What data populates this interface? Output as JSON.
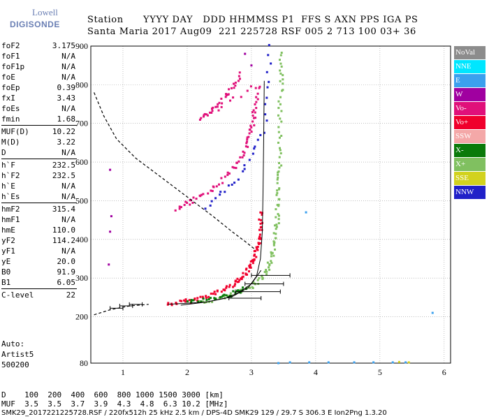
{
  "logo": {
    "line1": "Lowell",
    "line2": "DIGISONDE"
  },
  "header": {
    "row1": "Station      YYYY DAY   DDD HHMMSS P1  FFS S AXN PPS IGA PS",
    "row2": "Santa Maria 2017 Aug09  221 225728 RSF 005 2 713 100 03+ 36"
  },
  "params": [
    {
      "group": [
        {
          "k": "foF2",
          "v": "3.175"
        },
        {
          "k": "foF1",
          "v": "N/A"
        },
        {
          "k": "foF1p",
          "v": "N/A"
        },
        {
          "k": "foE",
          "v": "N/A"
        },
        {
          "k": "foEp",
          "v": "0.39"
        },
        {
          "k": "fxI",
          "v": "3.43"
        },
        {
          "k": "foEs",
          "v": "N/A"
        },
        {
          "k": "fmin",
          "v": "1.68"
        }
      ]
    },
    {
      "group": [
        {
          "k": "MUF(D)",
          "v": "10.22"
        },
        {
          "k": "M(D)",
          "v": "3.22"
        },
        {
          "k": "D",
          "v": "N/A"
        }
      ]
    },
    {
      "group": [
        {
          "k": "h`F",
          "v": "232.5"
        },
        {
          "k": "h`F2",
          "v": "232.5"
        },
        {
          "k": "h`E",
          "v": "N/A"
        },
        {
          "k": "h`Es",
          "v": "N/A"
        }
      ]
    },
    {
      "group": [
        {
          "k": "hmF2",
          "v": "315.4"
        },
        {
          "k": "hmF1",
          "v": "N/A"
        },
        {
          "k": "hmE",
          "v": "110.0"
        },
        {
          "k": "yF2",
          "v": "114.2"
        },
        {
          "k": "yF1",
          "v": "N/A"
        },
        {
          "k": "yE",
          "v": "20.0"
        },
        {
          "k": "B0",
          "v": "91.9"
        },
        {
          "k": "B1",
          "v": "6.05"
        }
      ]
    },
    {
      "group": [
        {
          "k": "C-level",
          "v": "22"
        }
      ]
    }
  ],
  "auto": {
    "line1": "Auto:",
    "line2": "Artist5",
    "line3": "500200"
  },
  "footer": {
    "d_row": "D    100  200  400  600  800 1000 1500 3000 [km]",
    "muf_row": "MUF  3.5  3.5  3.7  3.9  4.3  4.8  6.3 10.2 [MHz]",
    "file_row": "SMK29_2017221225728.RSF / 220fx512h 25 kHz 2.5 km / DPS-4D SMK29 129 / 29.7 S 306.3 E Ion2Png 1.3.20"
  },
  "legend": [
    {
      "label": "NoVal",
      "color": "#8c8c8c"
    },
    {
      "label": "NNE",
      "color": "#00e6ff"
    },
    {
      "label": "E",
      "color": "#3ba0ee"
    },
    {
      "label": "W",
      "color": "#a000a0"
    },
    {
      "label": "Vo-",
      "color": "#e0107a"
    },
    {
      "label": "Vo+",
      "color": "#f0002c"
    },
    {
      "label": "SSW",
      "color": "#f4a8a8"
    },
    {
      "label": "X-",
      "color": "#0a7a0a"
    },
    {
      "label": "X+",
      "color": "#80c060"
    },
    {
      "label": "SSE",
      "color": "#d2d21e"
    },
    {
      "label": "NNW",
      "color": "#2020c8"
    }
  ],
  "chart_data": {
    "type": "scatter",
    "xlabel": "",
    "ylabel": "",
    "xlim": [
      0.5,
      6.1
    ],
    "ylim": [
      80,
      900
    ],
    "x_ticks": [
      1,
      2,
      3,
      4,
      5,
      6
    ],
    "y_ticks": [
      80,
      200,
      300,
      400,
      500,
      600,
      700,
      800,
      900
    ],
    "grid": true,
    "series": [
      {
        "name": "Vo+",
        "color": "#f0002c",
        "points": [
          [
            1.7,
            232
          ],
          [
            2.0,
            240
          ],
          [
            2.3,
            252
          ],
          [
            2.55,
            268
          ],
          [
            2.75,
            288
          ],
          [
            2.88,
            305
          ],
          [
            2.98,
            325
          ],
          [
            3.05,
            350
          ],
          [
            3.1,
            380
          ],
          [
            3.13,
            420
          ],
          [
            3.16,
            470
          ]
        ]
      },
      {
        "name": "X+",
        "color": "#80c060",
        "points": [
          [
            2.2,
            235
          ],
          [
            2.6,
            250
          ],
          [
            2.9,
            268
          ],
          [
            3.1,
            290
          ],
          [
            3.25,
            320
          ],
          [
            3.33,
            360
          ],
          [
            3.38,
            410
          ],
          [
            3.41,
            470
          ],
          [
            3.43,
            530
          ],
          [
            3.44,
            600
          ],
          [
            3.45,
            700
          ],
          [
            3.46,
            800
          ],
          [
            3.47,
            880
          ]
        ]
      },
      {
        "name": "Vo-",
        "color": "#e0107a",
        "points": [
          [
            1.85,
            480
          ],
          [
            2.1,
            500
          ],
          [
            2.4,
            530
          ],
          [
            2.7,
            580
          ],
          [
            2.9,
            630
          ],
          [
            3.0,
            680
          ],
          [
            3.05,
            730
          ],
          [
            3.1,
            800
          ],
          [
            2.2,
            710
          ],
          [
            2.45,
            740
          ],
          [
            2.65,
            780
          ],
          [
            2.85,
            830
          ]
        ]
      },
      {
        "name": "X-",
        "color": "#0a7a0a",
        "points": [
          [
            2.0,
            238
          ],
          [
            2.4,
            246
          ],
          [
            2.7,
            258
          ],
          [
            2.9,
            272
          ]
        ]
      },
      {
        "name": "E",
        "color": "#3ba0ee",
        "points": [
          [
            3.42,
            80
          ],
          [
            3.6,
            82
          ],
          [
            3.9,
            82
          ],
          [
            4.2,
            82
          ],
          [
            4.6,
            82
          ],
          [
            4.9,
            82
          ],
          [
            5.2,
            82
          ],
          [
            5.4,
            82
          ],
          [
            3.85,
            470
          ],
          [
            5.82,
            210
          ]
        ]
      },
      {
        "name": "NNW",
        "color": "#2020c8",
        "points": [
          [
            2.3,
            480
          ],
          [
            2.8,
            560
          ],
          [
            3.2,
            680
          ],
          [
            3.3,
            900
          ]
        ]
      },
      {
        "name": "W",
        "color": "#a000a0",
        "points": [
          [
            0.8,
            580
          ],
          [
            0.82,
            460
          ],
          [
            0.8,
            420
          ],
          [
            0.78,
            335
          ],
          [
            2.9,
            880
          ],
          [
            3.0,
            850
          ]
        ]
      },
      {
        "name": "SSE",
        "color": "#d2d21e",
        "points": [
          [
            5.3,
            83
          ],
          [
            5.45,
            82
          ]
        ]
      }
    ],
    "profile_curve": [
      [
        1.7,
        232
      ],
      [
        2.3,
        238
      ],
      [
        2.7,
        252
      ],
      [
        2.95,
        275
      ],
      [
        3.08,
        305
      ],
      [
        3.14,
        350
      ],
      [
        3.17,
        420
      ],
      [
        3.18,
        520
      ],
      [
        3.19,
        650
      ],
      [
        3.2,
        810
      ]
    ],
    "mode_curve": [
      [
        1.9,
        230
      ],
      [
        2.3,
        238
      ],
      [
        2.6,
        248
      ],
      [
        2.8,
        262
      ],
      [
        3.0,
        285
      ],
      [
        3.15,
        320
      ]
    ],
    "dashed_curve": [
      [
        0.55,
        780
      ],
      [
        0.7,
        720
      ],
      [
        0.9,
        660
      ],
      [
        1.2,
        610
      ],
      [
        1.6,
        560
      ],
      [
        2.0,
        510
      ],
      [
        2.4,
        460
      ],
      [
        2.7,
        420
      ],
      [
        2.9,
        395
      ],
      [
        3.05,
        375
      ]
    ],
    "dashed_base": [
      [
        0.55,
        205
      ],
      [
        0.8,
        218
      ],
      [
        1.1,
        228
      ],
      [
        1.4,
        232
      ]
    ],
    "error_bars": [
      [
        3.3,
        307,
        0.3
      ],
      [
        3.2,
        285,
        0.3
      ],
      [
        3.1,
        265,
        0.35
      ],
      [
        2.9,
        248,
        0.25
      ],
      [
        1.2,
        232,
        0.1
      ],
      [
        1.05,
        228,
        0.1
      ],
      [
        0.9,
        222,
        0.1
      ]
    ]
  }
}
